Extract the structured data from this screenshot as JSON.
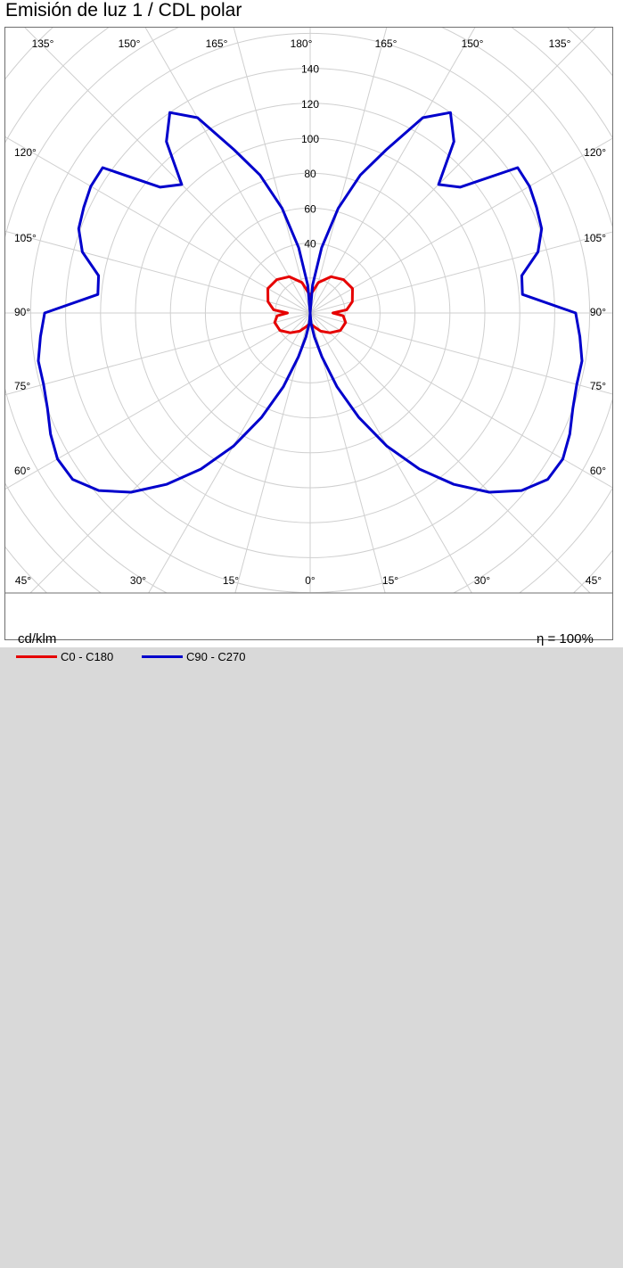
{
  "title": "Emisión de luz 1 / CDL polar",
  "colors": {
    "c0": "#e60000",
    "c90": "#0000cc",
    "grid": "#cfcfcf",
    "frame": "#6f6f6f",
    "background": "#d9d9d9"
  },
  "chart_data": {
    "type": "polar",
    "title": "Emisión de luz 1 / CDL polar",
    "unit": "cd/klm",
    "efficiency": "η = 100%",
    "radial_ticks": [
      40,
      60,
      80,
      100,
      120,
      140
    ],
    "radial_max": 170,
    "radial_step": 20,
    "angle_labels": {
      "top": [
        "135°",
        "150°",
        "165°",
        "180°",
        "165°",
        "150°",
        "135°"
      ],
      "bottom": [
        "45°",
        "30°",
        "15°",
        "0°",
        "15°",
        "30°",
        "45°"
      ],
      "left": [
        "120°",
        "105°",
        "90°",
        "75°",
        "60°"
      ],
      "right": [
        "120°",
        "105°",
        "90°",
        "75°",
        "60°"
      ]
    },
    "series": [
      {
        "name": "C0 - C180",
        "color": "#e60000",
        "angles_deg": [
          0,
          15,
          30,
          45,
          60,
          75,
          85,
          90,
          95,
          105,
          120,
          135,
          150,
          165,
          180
        ],
        "values": [
          6,
          8,
          12,
          16,
          20,
          21,
          19,
          13,
          21,
          25,
          28,
          27,
          24,
          18,
          10
        ]
      },
      {
        "name": "C90 - C270",
        "color": "#0000cc",
        "angles_deg": [
          0,
          5,
          10,
          15,
          20,
          25,
          30,
          35,
          40,
          45,
          50,
          55,
          60,
          65,
          70,
          75,
          80,
          85,
          90,
          95,
          100,
          105,
          110,
          115,
          120,
          125,
          130,
          135,
          140,
          145,
          150,
          155,
          160,
          165,
          170,
          175,
          180
        ],
        "values": [
          0,
          6,
          14,
          26,
          45,
          66,
          88,
          109,
          128,
          145,
          158,
          166,
          167,
          164,
          160,
          158,
          158,
          155,
          152,
          122,
          123,
          135,
          141,
          143,
          145,
          145,
          112,
          104,
          128,
          140,
          129,
          103,
          84,
          62,
          38,
          16,
          0
        ]
      }
    ]
  },
  "legend": {
    "c0_label": "C0 - C180",
    "c90_label": "C90 - C270"
  }
}
